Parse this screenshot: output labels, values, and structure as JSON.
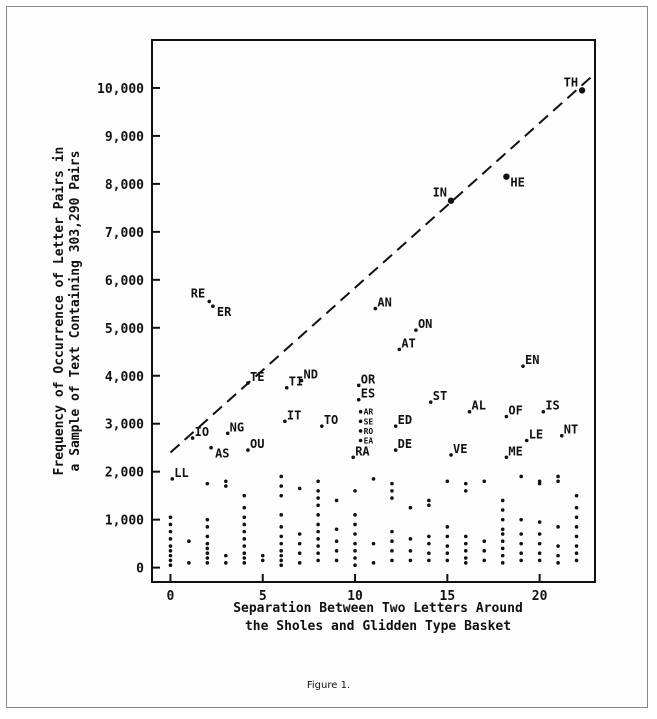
{
  "figure": {
    "caption": "Figure 1."
  },
  "chart_data": {
    "type": "scatter",
    "title": "",
    "xlabel": [
      "Separation Between Two Letters Around",
      "the Sholes and Glidden Type Basket"
    ],
    "ylabel": [
      "Frequency of Occurrence of Letter Pairs in",
      "a Sample of Text Containing 303,290 Pairs"
    ],
    "xlim": [
      -1,
      23
    ],
    "ylim": [
      -300,
      11000
    ],
    "x_ticks": [
      {
        "value": 0,
        "label": "0"
      },
      {
        "value": 5,
        "label": "5"
      },
      {
        "value": 10,
        "label": "10"
      },
      {
        "value": 15,
        "label": "15"
      },
      {
        "value": 20,
        "label": "20"
      }
    ],
    "y_ticks": [
      {
        "value": 0,
        "label": "0"
      },
      {
        "value": 1000,
        "label": "1,000"
      },
      {
        "value": 2000,
        "label": "2,000"
      },
      {
        "value": 3000,
        "label": "3,000"
      },
      {
        "value": 4000,
        "label": "4,000"
      },
      {
        "value": 5000,
        "label": "5,000"
      },
      {
        "value": 6000,
        "label": "6,000"
      },
      {
        "value": 7000,
        "label": "7,000"
      },
      {
        "value": 8000,
        "label": "8,000"
      },
      {
        "value": 9000,
        "label": "9,000"
      },
      {
        "value": 10000,
        "label": "10,000"
      }
    ],
    "trend_line": {
      "style": "dashed",
      "from": [
        0,
        2400
      ],
      "to": [
        23,
        10300
      ]
    },
    "labeled_points": [
      {
        "label": "TH",
        "x": 22.3,
        "y": 9950
      },
      {
        "label": "HE",
        "x": 18.2,
        "y": 8150
      },
      {
        "label": "IN",
        "x": 15.2,
        "y": 7650
      },
      {
        "label": "RE",
        "x": 2.1,
        "y": 5550
      },
      {
        "label": "ER",
        "x": 2.3,
        "y": 5450
      },
      {
        "label": "AN",
        "x": 11.1,
        "y": 5400
      },
      {
        "label": "ON",
        "x": 13.3,
        "y": 4950
      },
      {
        "label": "AT",
        "x": 12.4,
        "y": 4550
      },
      {
        "label": "EN",
        "x": 19.1,
        "y": 4200
      },
      {
        "label": "TE",
        "x": 4.2,
        "y": 3850
      },
      {
        "label": "ND",
        "x": 7.1,
        "y": 3900
      },
      {
        "label": "TI",
        "x": 6.3,
        "y": 3750
      },
      {
        "label": "OR",
        "x": 10.2,
        "y": 3800
      },
      {
        "label": "ES",
        "x": 10.2,
        "y": 3500
      },
      {
        "label": "ST",
        "x": 14.1,
        "y": 3450
      },
      {
        "label": "AL",
        "x": 16.2,
        "y": 3250
      },
      {
        "label": "OF",
        "x": 18.2,
        "y": 3150
      },
      {
        "label": "IS",
        "x": 20.2,
        "y": 3250
      },
      {
        "label": "IT",
        "x": 6.2,
        "y": 3050
      },
      {
        "label": "TO",
        "x": 8.2,
        "y": 2950
      },
      {
        "label": "ED",
        "x": 12.2,
        "y": 2950
      },
      {
        "label": "AR",
        "x": 10.3,
        "y": 3250
      },
      {
        "label": "SE",
        "x": 10.3,
        "y": 3050
      },
      {
        "label": "RO",
        "x": 10.3,
        "y": 2850
      },
      {
        "label": "EA",
        "x": 10.3,
        "y": 2650
      },
      {
        "label": "NG",
        "x": 3.1,
        "y": 2800
      },
      {
        "label": "IO",
        "x": 1.2,
        "y": 2700
      },
      {
        "label": "LE",
        "x": 19.3,
        "y": 2650
      },
      {
        "label": "NT",
        "x": 21.2,
        "y": 2750
      },
      {
        "label": "AS",
        "x": 2.2,
        "y": 2500
      },
      {
        "label": "OU",
        "x": 4.2,
        "y": 2450
      },
      {
        "label": "DE",
        "x": 12.2,
        "y": 2450
      },
      {
        "label": "RA",
        "x": 9.9,
        "y": 2300
      },
      {
        "label": "VE",
        "x": 15.2,
        "y": 2350
      },
      {
        "label": "ME",
        "x": 18.2,
        "y": 2300
      },
      {
        "label": "LL",
        "x": 0.1,
        "y": 1850
      }
    ],
    "unlabeled_points": [
      {
        "x": 0,
        "y": [
          1050,
          900,
          750,
          600,
          450,
          350,
          250,
          150,
          50
        ]
      },
      {
        "x": 1,
        "y": [
          550,
          100
        ]
      },
      {
        "x": 2,
        "y": [
          1750,
          1000,
          850,
          650,
          500,
          400,
          300,
          200,
          100
        ]
      },
      {
        "x": 3,
        "y": [
          1800,
          1700,
          250,
          100
        ]
      },
      {
        "x": 4,
        "y": [
          1500,
          1250,
          1050,
          900,
          750,
          600,
          450,
          300,
          200,
          100
        ]
      },
      {
        "x": 5,
        "y": [
          250,
          150
        ]
      },
      {
        "x": 6,
        "y": [
          1900,
          1700,
          1500,
          1100,
          850,
          650,
          500,
          350,
          250,
          150,
          50
        ]
      },
      {
        "x": 7,
        "y": [
          1650,
          700,
          500,
          300,
          100
        ]
      },
      {
        "x": 8,
        "y": [
          1800,
          1600,
          1450,
          1300,
          1100,
          900,
          750,
          600,
          450,
          300,
          150
        ]
      },
      {
        "x": 9,
        "y": [
          1400,
          800,
          550,
          350,
          150
        ]
      },
      {
        "x": 10,
        "y": [
          1600,
          1100,
          900,
          700,
          500,
          350,
          200,
          50
        ]
      },
      {
        "x": 11,
        "y": [
          1850,
          500,
          100
        ]
      },
      {
        "x": 12,
        "y": [
          1750,
          1600,
          1450,
          750,
          550,
          350,
          150
        ]
      },
      {
        "x": 13,
        "y": [
          1250,
          600,
          350,
          150
        ]
      },
      {
        "x": 14,
        "y": [
          1400,
          1300,
          650,
          500,
          300,
          150
        ]
      },
      {
        "x": 15,
        "y": [
          1800,
          850,
          650,
          450,
          300,
          150
        ]
      },
      {
        "x": 16,
        "y": [
          1750,
          1600,
          650,
          500,
          350,
          200,
          100
        ]
      },
      {
        "x": 17,
        "y": [
          1800,
          550,
          350,
          150
        ]
      },
      {
        "x": 18,
        "y": [
          1400,
          1200,
          1000,
          800,
          700,
          550,
          400,
          250,
          100
        ]
      },
      {
        "x": 19,
        "y": [
          1900,
          1000,
          700,
          500,
          300,
          150
        ]
      },
      {
        "x": 20,
        "y": [
          1800,
          1750,
          950,
          700,
          500,
          300,
          150
        ]
      },
      {
        "x": 21,
        "y": [
          1900,
          1800,
          850,
          450,
          250,
          100
        ]
      },
      {
        "x": 22,
        "y": [
          1500,
          1250,
          1050,
          850,
          650,
          450,
          300,
          150
        ]
      }
    ],
    "grid": false,
    "legend": "none"
  }
}
